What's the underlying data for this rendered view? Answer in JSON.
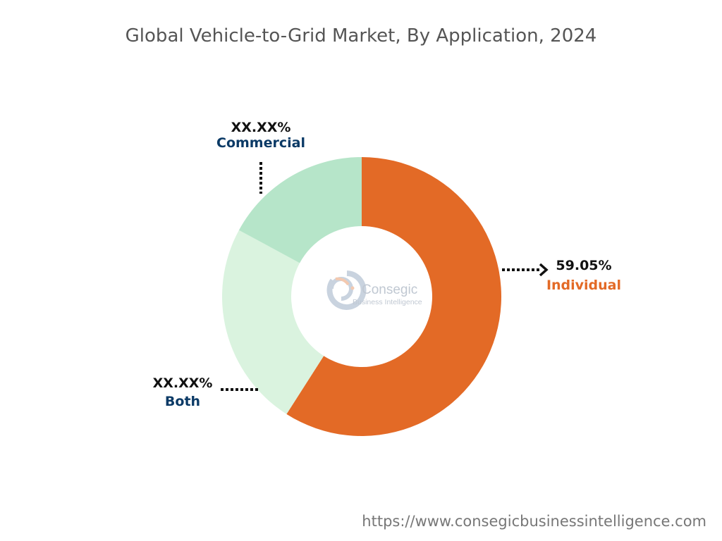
{
  "chart_data": {
    "type": "pie",
    "donut": true,
    "title": "Global Vehicle-to-Grid Market, By Application, 2024",
    "slices": [
      {
        "name": "Individual",
        "value": 59.05,
        "label": "59.05%",
        "color": "#E36A26",
        "label_color": "#E36A26"
      },
      {
        "name": "Both",
        "value": 23.85,
        "label": "XX.XX%",
        "color": "#DAF3DF",
        "label_color": "#0B3A66"
      },
      {
        "name": "Commercial",
        "value": 17.1,
        "label": "XX.XX%",
        "color": "#B6E5C9",
        "label_color": "#0B3A66"
      }
    ]
  },
  "logo": {
    "name": "Consegic",
    "tagline": "Business Intelligence"
  },
  "footer": {
    "url": "https://www.consegicbusinessintelligence.com"
  }
}
